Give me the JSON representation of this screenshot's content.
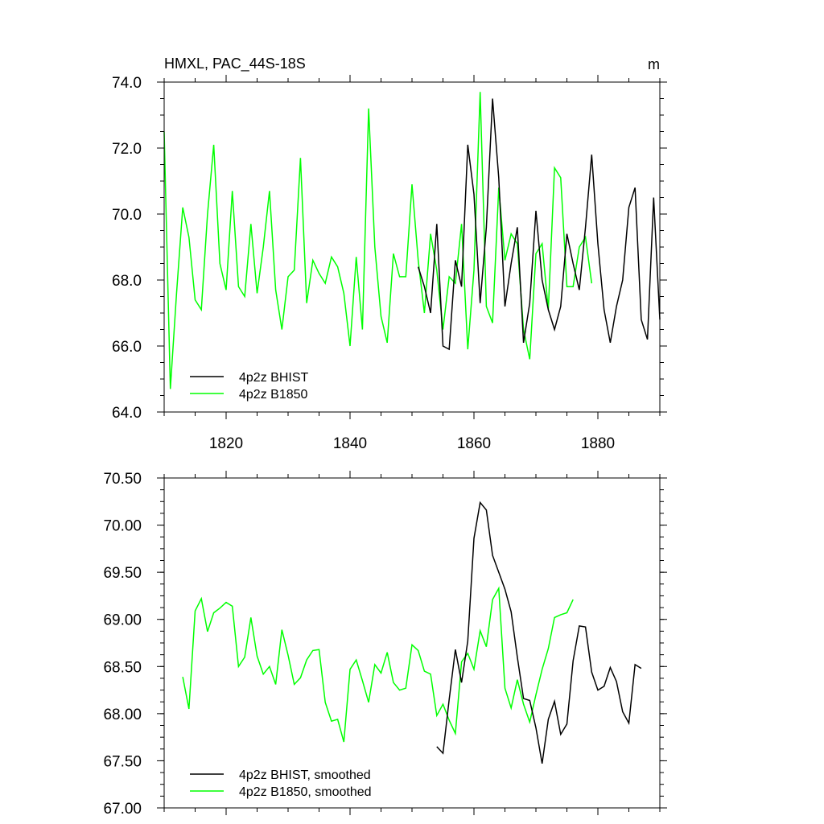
{
  "chart_data": [
    {
      "type": "line",
      "title": "HMXL, PAC_44S-18S",
      "units_label": "m",
      "xlim": [
        1810,
        1890
      ],
      "ylim": [
        64.0,
        74.0
      ],
      "x_ticks": [
        1820,
        1840,
        1860,
        1880
      ],
      "y_ticks": [
        64.0,
        66.0,
        68.0,
        70.0,
        72.0,
        74.0
      ],
      "y_tick_labels": [
        "64.0",
        "66.0",
        "68.0",
        "70.0",
        "72.0",
        "74.0"
      ],
      "legend_position": "bottom-left",
      "series": [
        {
          "name": "4p2z BHIST",
          "color": "#000000",
          "x_start": 1851,
          "values": [
            68.4,
            67.8,
            67.0,
            69.7,
            66.0,
            65.9,
            68.6,
            67.8,
            72.1,
            70.6,
            67.3,
            69.6,
            73.5,
            71.1,
            67.2,
            68.5,
            69.6,
            66.1,
            67.3,
            70.1,
            68.0,
            67.1,
            66.5,
            67.2,
            69.4,
            68.5,
            67.7,
            69.6,
            71.8,
            69.1,
            67.1,
            66.1,
            67.2,
            68.0,
            70.2,
            70.8,
            66.8,
            66.2,
            70.5,
            66.8
          ]
        },
        {
          "name": "4p2z B1850",
          "color": "#00ff00",
          "x_start": 1810,
          "values": [
            72.5,
            64.7,
            67.6,
            70.2,
            69.3,
            67.4,
            67.1,
            70.0,
            72.1,
            68.5,
            67.7,
            70.7,
            67.8,
            67.5,
            69.7,
            67.6,
            69.0,
            70.7,
            67.7,
            66.5,
            68.1,
            68.3,
            71.7,
            67.3,
            68.6,
            68.2,
            67.9,
            68.7,
            68.4,
            67.6,
            66.0,
            68.7,
            66.5,
            73.2,
            69.0,
            66.9,
            66.1,
            68.8,
            68.1,
            68.1,
            70.9,
            68.6,
            67.0,
            69.4,
            68.3,
            66.5,
            68.1,
            67.9,
            69.7,
            65.9,
            68.3,
            73.7,
            67.2,
            66.7,
            70.8,
            68.6,
            69.4,
            69.1,
            66.5,
            65.6,
            68.8,
            69.1,
            67.1,
            71.4,
            71.1,
            67.8,
            67.8,
            69.0,
            69.3,
            67.9
          ]
        }
      ]
    },
    {
      "type": "line",
      "xlim": [
        1810,
        1890
      ],
      "ylim": [
        67.0,
        70.5
      ],
      "y_ticks": [
        67.0,
        67.5,
        68.0,
        68.5,
        69.0,
        69.5,
        70.0,
        70.5
      ],
      "y_tick_labels": [
        "67.00",
        "67.50",
        "68.00",
        "68.50",
        "69.00",
        "69.50",
        "70.00",
        "70.50"
      ],
      "x_ticks": [
        1820,
        1840,
        1860,
        1880
      ],
      "legend_position": "bottom-left",
      "series": [
        {
          "name": "4p2z BHIST, smoothed",
          "color": "#000000",
          "x_start": 1854,
          "values": [
            67.65,
            67.58,
            68.15,
            68.68,
            68.33,
            68.77,
            69.86,
            70.24,
            70.16,
            69.68,
            69.5,
            69.32,
            69.08,
            68.6,
            68.16,
            68.14,
            67.85,
            67.47,
            67.94,
            68.13,
            67.78,
            67.89,
            68.56,
            68.93,
            68.92,
            68.44,
            68.25,
            68.29,
            68.49,
            68.34,
            68.02,
            67.9,
            68.52,
            68.48
          ]
        },
        {
          "name": "4p2z B1850, smoothed",
          "color": "#00ff00",
          "x_start": 1813,
          "values": [
            68.39,
            68.05,
            69.09,
            69.22,
            68.87,
            69.07,
            69.12,
            69.18,
            69.14,
            68.5,
            68.6,
            69.02,
            68.61,
            68.42,
            68.5,
            68.31,
            68.89,
            68.62,
            68.31,
            68.38,
            68.57,
            68.67,
            68.68,
            68.12,
            67.92,
            67.94,
            67.7,
            68.47,
            68.57,
            68.35,
            68.12,
            68.52,
            68.43,
            68.65,
            68.33,
            68.25,
            68.27,
            68.73,
            68.67,
            68.45,
            68.42,
            67.98,
            68.1,
            67.93,
            67.79,
            68.55,
            68.64,
            68.47,
            68.88,
            68.71,
            69.21,
            69.33,
            68.27,
            68.06,
            68.36,
            68.1,
            67.91,
            68.2,
            68.47,
            68.69,
            69.02,
            69.05,
            69.07,
            69.21
          ]
        }
      ]
    }
  ]
}
